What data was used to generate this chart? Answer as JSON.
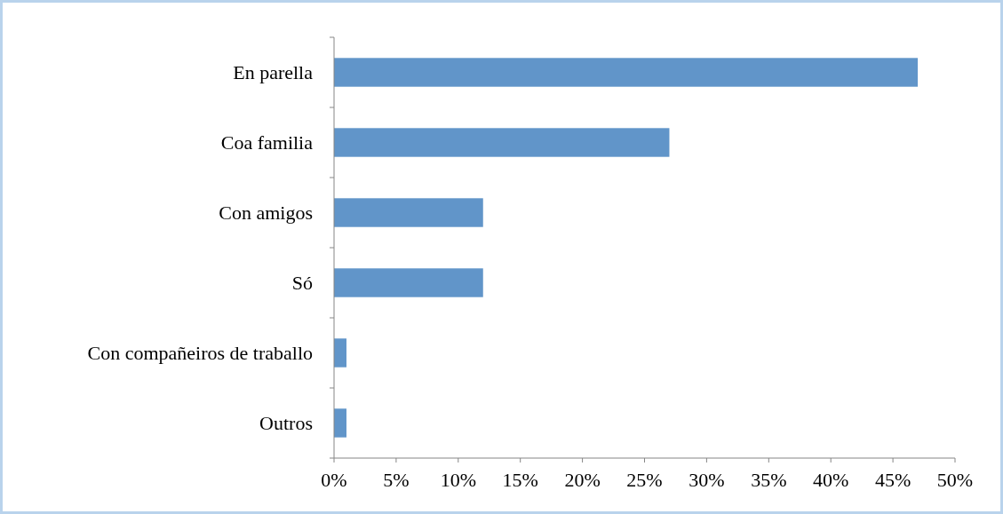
{
  "chart_data": {
    "type": "bar",
    "orientation": "horizontal",
    "categories": [
      "En parella",
      "Coa familia",
      "Con amigos",
      "Só",
      "Con compañeiros de traballo",
      "Outros"
    ],
    "values": [
      47,
      27,
      12,
      12,
      1,
      1
    ],
    "color": "#6195c9",
    "xlim": [
      0,
      50
    ],
    "xticks": [
      {
        "value": 0,
        "label": "0%"
      },
      {
        "value": 5,
        "label": "5%"
      },
      {
        "value": 10,
        "label": "10%"
      },
      {
        "value": 15,
        "label": "15%"
      },
      {
        "value": 20,
        "label": "20%"
      },
      {
        "value": 25,
        "label": "25%"
      },
      {
        "value": 30,
        "label": "30%"
      },
      {
        "value": 35,
        "label": "35%"
      },
      {
        "value": 40,
        "label": "40%"
      },
      {
        "value": 45,
        "label": "45%"
      },
      {
        "value": 50,
        "label": "50%"
      }
    ],
    "grid": false
  }
}
